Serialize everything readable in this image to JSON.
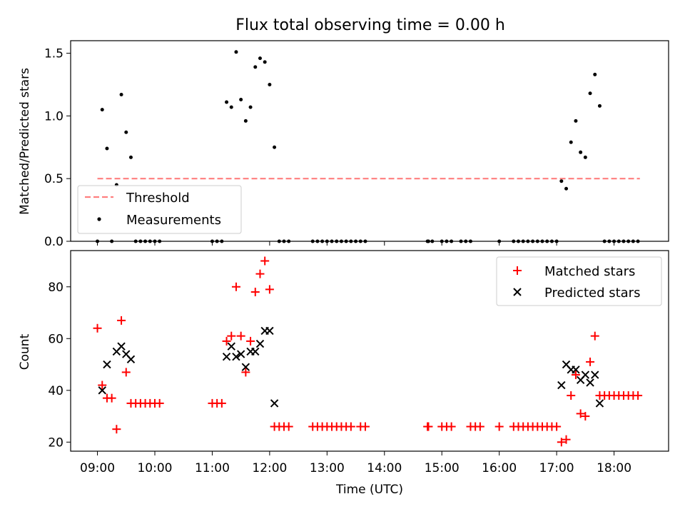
{
  "title": "Flux total observing time = 0.00 h",
  "colors": {
    "threshold": "#ff7f7f",
    "measurement": "#000000",
    "matched": "#ff0000",
    "predicted": "#000000"
  },
  "chart_data": [
    {
      "type": "scatter",
      "ylabel": "Matched/Predicted stars",
      "xlim": [
        "08:32",
        "18:57"
      ],
      "ylim": [
        0,
        1.6
      ],
      "yticks": [
        0.0,
        0.5,
        1.0,
        1.5
      ],
      "ytick_labels": [
        "0.0",
        "0.5",
        "1.0",
        "1.5"
      ],
      "grid": false,
      "legend_position": "lower-left",
      "legend": [
        "Threshold",
        "Measurements"
      ],
      "threshold": {
        "name": "Threshold",
        "value": 0.5,
        "x_start": "09:00",
        "x_end": "18:27"
      },
      "series": [
        {
          "name": "Measurements",
          "points": [
            [
              "09:00",
              0
            ],
            [
              "09:05",
              1.05
            ],
            [
              "09:10",
              0.74
            ],
            [
              "09:15",
              0
            ],
            [
              "09:20",
              0.45
            ],
            [
              "09:25",
              1.17
            ],
            [
              "09:30",
              0.87
            ],
            [
              "09:35",
              0.67
            ],
            [
              "09:40",
              0
            ],
            [
              "09:45",
              0
            ],
            [
              "09:50",
              0
            ],
            [
              "09:55",
              0
            ],
            [
              "10:00",
              0
            ],
            [
              "10:05",
              0
            ],
            [
              "11:00",
              0
            ],
            [
              "11:05",
              0
            ],
            [
              "11:10",
              0
            ],
            [
              "11:15",
              1.11
            ],
            [
              "11:20",
              1.07
            ],
            [
              "11:25",
              1.51
            ],
            [
              "11:30",
              1.13
            ],
            [
              "11:35",
              0.96
            ],
            [
              "11:40",
              1.07
            ],
            [
              "11:45",
              1.39
            ],
            [
              "11:50",
              1.46
            ],
            [
              "11:55",
              1.43
            ],
            [
              "12:00",
              1.25
            ],
            [
              "12:05",
              0.75
            ],
            [
              "12:10",
              0
            ],
            [
              "12:15",
              0
            ],
            [
              "12:20",
              0
            ],
            [
              "12:45",
              0
            ],
            [
              "12:50",
              0
            ],
            [
              "12:55",
              0
            ],
            [
              "13:00",
              0
            ],
            [
              "13:05",
              0
            ],
            [
              "13:10",
              0
            ],
            [
              "13:15",
              0
            ],
            [
              "13:20",
              0
            ],
            [
              "13:25",
              0
            ],
            [
              "13:30",
              0
            ],
            [
              "13:35",
              0
            ],
            [
              "13:40",
              0
            ],
            [
              "14:45",
              0
            ],
            [
              "14:46",
              0
            ],
            [
              "14:50",
              0
            ],
            [
              "15:00",
              0
            ],
            [
              "15:05",
              0
            ],
            [
              "15:10",
              0
            ],
            [
              "15:20",
              0
            ],
            [
              "15:25",
              0
            ],
            [
              "15:30",
              0
            ],
            [
              "16:00",
              0
            ],
            [
              "16:15",
              0
            ],
            [
              "16:20",
              0
            ],
            [
              "16:25",
              0
            ],
            [
              "16:30",
              0
            ],
            [
              "16:35",
              0
            ],
            [
              "16:40",
              0
            ],
            [
              "16:45",
              0
            ],
            [
              "16:50",
              0
            ],
            [
              "16:55",
              0
            ],
            [
              "17:00",
              0
            ],
            [
              "17:05",
              0.48
            ],
            [
              "17:10",
              0.42
            ],
            [
              "17:15",
              0.79
            ],
            [
              "17:20",
              0.96
            ],
            [
              "17:25",
              0.71
            ],
            [
              "17:30",
              0.67
            ],
            [
              "17:35",
              1.18
            ],
            [
              "17:40",
              1.33
            ],
            [
              "17:45",
              1.08
            ],
            [
              "17:50",
              0
            ],
            [
              "17:55",
              0
            ],
            [
              "18:00",
              0
            ],
            [
              "18:05",
              0
            ],
            [
              "18:10",
              0
            ],
            [
              "18:15",
              0
            ],
            [
              "18:20",
              0
            ],
            [
              "18:25",
              0
            ]
          ]
        }
      ]
    },
    {
      "type": "scatter",
      "ylabel": "Count",
      "xlabel": "Time (UTC)",
      "xlim": [
        "08:32",
        "18:57"
      ],
      "xticks": [
        "09:00",
        "10:00",
        "11:00",
        "12:00",
        "13:00",
        "14:00",
        "15:00",
        "16:00",
        "17:00",
        "18:00"
      ],
      "ylim": [
        16.5,
        94
      ],
      "yticks": [
        20,
        40,
        60,
        80
      ],
      "ytick_labels": [
        "20",
        "40",
        "60",
        "80"
      ],
      "grid": false,
      "legend_position": "top-right",
      "legend": [
        "Matched stars",
        "Predicted stars"
      ],
      "series": [
        {
          "name": "Matched stars",
          "marker": "plus",
          "points": [
            [
              "09:00",
              64
            ],
            [
              "09:05",
              42
            ],
            [
              "09:10",
              37
            ],
            [
              "09:15",
              37
            ],
            [
              "09:20",
              25
            ],
            [
              "09:25",
              67
            ],
            [
              "09:30",
              47
            ],
            [
              "09:35",
              35
            ],
            [
              "09:40",
              35
            ],
            [
              "09:45",
              35
            ],
            [
              "09:50",
              35
            ],
            [
              "09:55",
              35
            ],
            [
              "10:00",
              35
            ],
            [
              "10:05",
              35
            ],
            [
              "11:00",
              35
            ],
            [
              "11:05",
              35
            ],
            [
              "11:10",
              35
            ],
            [
              "11:15",
              59
            ],
            [
              "11:20",
              61
            ],
            [
              "11:25",
              80
            ],
            [
              "11:30",
              61
            ],
            [
              "11:35",
              47
            ],
            [
              "11:40",
              59
            ],
            [
              "11:45",
              78
            ],
            [
              "11:50",
              85
            ],
            [
              "11:55",
              90
            ],
            [
              "12:00",
              79
            ],
            [
              "12:05",
              26
            ],
            [
              "12:10",
              26
            ],
            [
              "12:15",
              26
            ],
            [
              "12:20",
              26
            ],
            [
              "12:45",
              26
            ],
            [
              "12:50",
              26
            ],
            [
              "12:55",
              26
            ],
            [
              "13:00",
              26
            ],
            [
              "13:05",
              26
            ],
            [
              "13:10",
              26
            ],
            [
              "13:15",
              26
            ],
            [
              "13:20",
              26
            ],
            [
              "13:25",
              26
            ],
            [
              "13:35",
              26
            ],
            [
              "13:40",
              26
            ],
            [
              "14:45",
              26
            ],
            [
              "14:46",
              26
            ],
            [
              "15:00",
              26
            ],
            [
              "15:05",
              26
            ],
            [
              "15:10",
              26
            ],
            [
              "15:30",
              26
            ],
            [
              "15:35",
              26
            ],
            [
              "15:40",
              26
            ],
            [
              "16:00",
              26
            ],
            [
              "16:15",
              26
            ],
            [
              "16:20",
              26
            ],
            [
              "16:25",
              26
            ],
            [
              "16:30",
              26
            ],
            [
              "16:35",
              26
            ],
            [
              "16:40",
              26
            ],
            [
              "16:45",
              26
            ],
            [
              "16:50",
              26
            ],
            [
              "16:55",
              26
            ],
            [
              "17:00",
              26
            ],
            [
              "17:05",
              20
            ],
            [
              "17:10",
              21
            ],
            [
              "17:15",
              38
            ],
            [
              "17:20",
              46
            ],
            [
              "17:25",
              31
            ],
            [
              "17:30",
              30
            ],
            [
              "17:35",
              51
            ],
            [
              "17:40",
              61
            ],
            [
              "17:45",
              38
            ],
            [
              "17:50",
              38
            ],
            [
              "17:55",
              38
            ],
            [
              "18:00",
              38
            ],
            [
              "18:05",
              38
            ],
            [
              "18:10",
              38
            ],
            [
              "18:15",
              38
            ],
            [
              "18:20",
              38
            ],
            [
              "18:25",
              38
            ]
          ]
        },
        {
          "name": "Predicted stars",
          "marker": "x",
          "points": [
            [
              "09:05",
              40
            ],
            [
              "09:10",
              50
            ],
            [
              "09:20",
              55
            ],
            [
              "09:25",
              57
            ],
            [
              "09:30",
              54
            ],
            [
              "09:35",
              52
            ],
            [
              "11:15",
              53
            ],
            [
              "11:20",
              57
            ],
            [
              "11:25",
              53
            ],
            [
              "11:30",
              54
            ],
            [
              "11:35",
              49
            ],
            [
              "11:40",
              55
            ],
            [
              "11:45",
              55
            ],
            [
              "11:50",
              58
            ],
            [
              "11:55",
              63
            ],
            [
              "12:00",
              63
            ],
            [
              "12:05",
              35
            ],
            [
              "17:05",
              42
            ],
            [
              "17:10",
              50
            ],
            [
              "17:15",
              48
            ],
            [
              "17:20",
              48
            ],
            [
              "17:25",
              44
            ],
            [
              "17:30",
              46
            ],
            [
              "17:35",
              43
            ],
            [
              "17:40",
              46
            ],
            [
              "17:45",
              35
            ]
          ]
        }
      ]
    }
  ]
}
